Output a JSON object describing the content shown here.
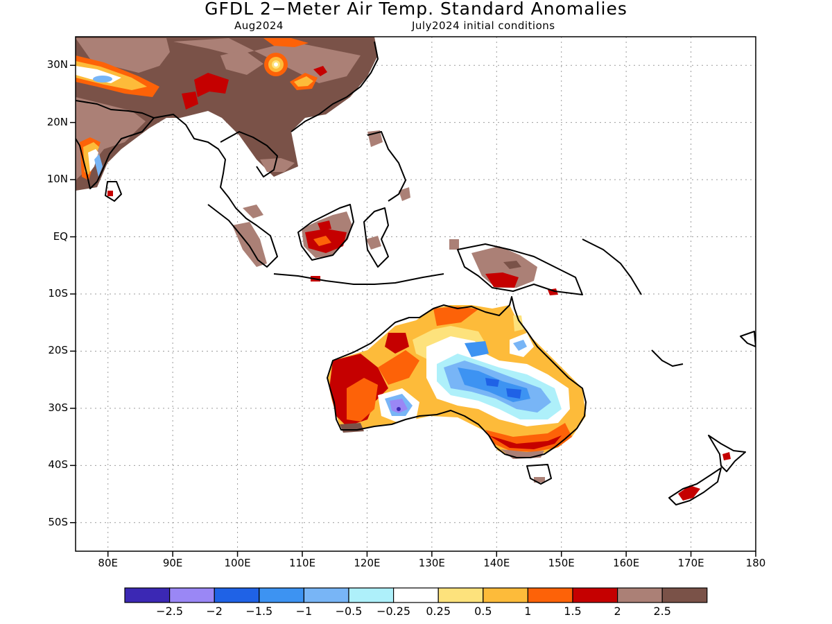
{
  "title": "GFDL 2−Meter Air Temp. Standard Anomalies",
  "subtitle_left": "Aug2024",
  "subtitle_right": "July2024 initial conditions",
  "map": {
    "lon_range": [
      75,
      180
    ],
    "lat_range": [
      -55,
      35
    ],
    "lat_ticks": [
      {
        "value": 30,
        "label": "30N"
      },
      {
        "value": 20,
        "label": "20N"
      },
      {
        "value": 10,
        "label": "10N"
      },
      {
        "value": 0,
        "label": "EQ"
      },
      {
        "value": -10,
        "label": "10S"
      },
      {
        "value": -20,
        "label": "20S"
      },
      {
        "value": -30,
        "label": "30S"
      },
      {
        "value": -40,
        "label": "40S"
      },
      {
        "value": -50,
        "label": "50S"
      }
    ],
    "lon_ticks": [
      {
        "value": 80,
        "label": "80E"
      },
      {
        "value": 90,
        "label": "90E"
      },
      {
        "value": 100,
        "label": "100E"
      },
      {
        "value": 110,
        "label": "110E"
      },
      {
        "value": 120,
        "label": "120E"
      },
      {
        "value": 130,
        "label": "130E"
      },
      {
        "value": 140,
        "label": "140E"
      },
      {
        "value": 150,
        "label": "150E"
      },
      {
        "value": 160,
        "label": "160E"
      },
      {
        "value": 170,
        "label": "170E"
      },
      {
        "value": 180,
        "label": "180"
      }
    ],
    "gridlines": "dotted"
  },
  "colorbar": {
    "colors": [
      "#3b28b4",
      "#9a87f5",
      "#1f62e6",
      "#3d93f2",
      "#78b5f6",
      "#aef0fa",
      "#ffffff",
      "#fde27c",
      "#fdbb3a",
      "#fd6208",
      "#c50000",
      "#ab8076",
      "#7a5248"
    ],
    "labels": [
      "−2.5",
      "−2",
      "−1.5",
      "−1",
      "−0.5",
      "−0.25",
      "0.25",
      "0.5",
      "1",
      "1.5",
      "2",
      "2.5"
    ]
  },
  "colors": {
    "land_outline": "#000000",
    "brown_dark": "#7a5248",
    "brown_light": "#ab8076"
  }
}
